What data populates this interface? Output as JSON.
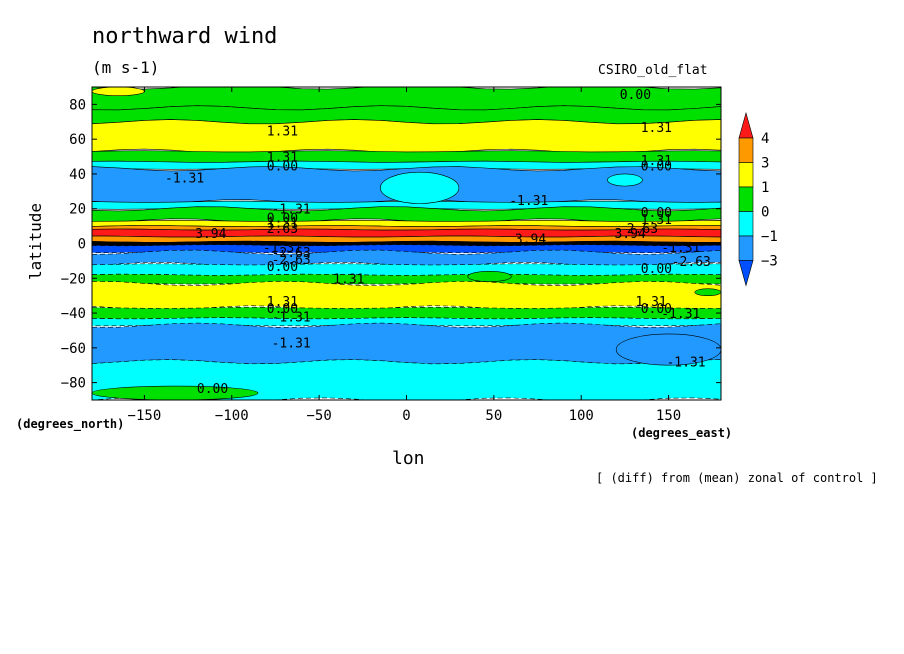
{
  "title": "northward wind",
  "units": "(m s-1)",
  "model": "CSIRO_old_flat",
  "note": "[ (diff) from (mean) zonal of control ]",
  "chart_data": {
    "type": "heatmap",
    "xlabel": "lon",
    "ylabel": "latitude",
    "x_unit_label": "(degrees_east)",
    "y_unit_label": "(degrees_north)",
    "xlim": [
      -180,
      180
    ],
    "ylim": [
      -90,
      90
    ],
    "x_ticks": [
      -150,
      -100,
      -50,
      0,
      50,
      100,
      150
    ],
    "y_ticks": [
      -80,
      -60,
      -40,
      -20,
      0,
      20,
      40,
      60,
      80
    ],
    "colorbar": {
      "labels": [
        "4",
        "3",
        "1",
        "0",
        "−1",
        "−3"
      ],
      "colors": [
        "#ff1a1a",
        "#ff9900",
        "#ffff00",
        "#00e000",
        "#00ffff",
        "#2299ff",
        "#0050ff"
      ]
    },
    "bands": [
      {
        "lat": [
          78,
          90
        ],
        "color": "#00e000"
      },
      {
        "lat": [
          70,
          78
        ],
        "color": "#00e000"
      },
      {
        "lat": [
          53,
          70
        ],
        "color": "#ffff00"
      },
      {
        "lat": [
          47,
          53
        ],
        "color": "#00e000"
      },
      {
        "lat": [
          43,
          47
        ],
        "color": "#00ffff"
      },
      {
        "lat": [
          24,
          43
        ],
        "color": "#2299ff"
      },
      {
        "lat": [
          20,
          24
        ],
        "color": "#00ffff"
      },
      {
        "lat": [
          13,
          20
        ],
        "color": "#00e000"
      },
      {
        "lat": [
          10,
          13
        ],
        "color": "#ffff00"
      },
      {
        "lat": [
          8,
          10
        ],
        "color": "#ff9900"
      },
      {
        "lat": [
          4,
          8
        ],
        "color": "#ff1a1a"
      },
      {
        "lat": [
          1,
          4
        ],
        "color": "#ff9900"
      },
      {
        "lat": [
          -1,
          1
        ],
        "color": "#000000"
      },
      {
        "lat": [
          -5,
          -1
        ],
        "color": "#0050ff"
      },
      {
        "lat": [
          -12,
          -5
        ],
        "color": "#2299ff"
      },
      {
        "lat": [
          -18,
          -12
        ],
        "color": "#00ffff"
      },
      {
        "lat": [
          -23,
          -18
        ],
        "color": "#00e000"
      },
      {
        "lat": [
          -37,
          -23
        ],
        "color": "#ffff00"
      },
      {
        "lat": [
          -43,
          -37
        ],
        "color": "#00e000"
      },
      {
        "lat": [
          -47,
          -43
        ],
        "color": "#00ffff"
      },
      {
        "lat": [
          -68,
          -47
        ],
        "color": "#2299ff"
      },
      {
        "lat": [
          -90,
          -68
        ],
        "color": "#00ffff"
      }
    ],
    "blobs": [
      {
        "lon": [
          -15,
          30
        ],
        "lat": [
          23,
          41
        ],
        "color": "#00ffff"
      },
      {
        "lon": [
          115,
          135
        ],
        "lat": [
          33,
          40
        ],
        "color": "#00ffff"
      },
      {
        "lon": [
          120,
          180
        ],
        "lat": [
          -70,
          -52
        ],
        "color": "#2299ff"
      },
      {
        "lon": [
          -180,
          -85
        ],
        "lat": [
          -90,
          -82
        ],
        "color": "#00e000"
      },
      {
        "lon": [
          35,
          60
        ],
        "lat": [
          -22,
          -16
        ],
        "color": "#00e000"
      },
      {
        "lon": [
          165,
          180
        ],
        "lat": [
          -30,
          -26
        ],
        "color": "#00e000"
      },
      {
        "lon": [
          -180,
          -150
        ],
        "lat": [
          85,
          90
        ],
        "color": "#ffff00"
      }
    ],
    "contour_labels": [
      {
        "text": "0.00",
        "lon": 131,
        "lat": 86
      },
      {
        "text": "1.31",
        "lon": -71,
        "lat": 65
      },
      {
        "text": "1.31",
        "lon": 143,
        "lat": 67
      },
      {
        "text": "1.31",
        "lon": -71,
        "lat": 50
      },
      {
        "text": "0.00",
        "lon": -71,
        "lat": 45
      },
      {
        "text": "1.31",
        "lon": 143,
        "lat": 48
      },
      {
        "text": "0.00",
        "lon": 143,
        "lat": 45
      },
      {
        "text": "-1.31",
        "lon": -127,
        "lat": 38
      },
      {
        "text": "-1.31",
        "lon": 70,
        "lat": 25
      },
      {
        "text": "-1.31",
        "lon": -66,
        "lat": 20
      },
      {
        "text": "0.00",
        "lon": -71,
        "lat": 15
      },
      {
        "text": "0.00",
        "lon": 143,
        "lat": 18
      },
      {
        "text": "1.31",
        "lon": -71,
        "lat": 12
      },
      {
        "text": "1.31",
        "lon": 143,
        "lat": 14
      },
      {
        "text": "2.63",
        "lon": -71,
        "lat": 9
      },
      {
        "text": "2.63",
        "lon": 135,
        "lat": 9
      },
      {
        "text": "3.94",
        "lon": -112,
        "lat": 6
      },
      {
        "text": "3.94",
        "lon": 128,
        "lat": 6
      },
      {
        "text": "3.94",
        "lon": 71,
        "lat": 3
      },
      {
        "text": "-1.31",
        "lon": -71,
        "lat": -2
      },
      {
        "text": "-2.63",
        "lon": -66,
        "lat": -5
      },
      {
        "text": "-1.31",
        "lon": 157,
        "lat": -2
      },
      {
        "text": "-2.63",
        "lon": -66,
        "lat": -9
      },
      {
        "text": "-2.63",
        "lon": 163,
        "lat": -10
      },
      {
        "text": "0.00",
        "lon": -71,
        "lat": -13
      },
      {
        "text": "0.00",
        "lon": 143,
        "lat": -14
      },
      {
        "text": "1.31",
        "lon": -33,
        "lat": -20
      },
      {
        "text": "1.31",
        "lon": -71,
        "lat": -33
      },
      {
        "text": "1.31",
        "lon": 140,
        "lat": -33
      },
      {
        "text": "0.00",
        "lon": -71,
        "lat": -37
      },
      {
        "text": "0.00",
        "lon": 143,
        "lat": -37
      },
      {
        "text": "-1.31",
        "lon": -66,
        "lat": -42
      },
      {
        "text": "-1.31",
        "lon": 157,
        "lat": -40
      },
      {
        "text": "-1.31",
        "lon": -66,
        "lat": -57
      },
      {
        "text": "-1.31",
        "lon": 160,
        "lat": -68
      },
      {
        "text": "0.00",
        "lon": -111,
        "lat": -83
      }
    ]
  }
}
